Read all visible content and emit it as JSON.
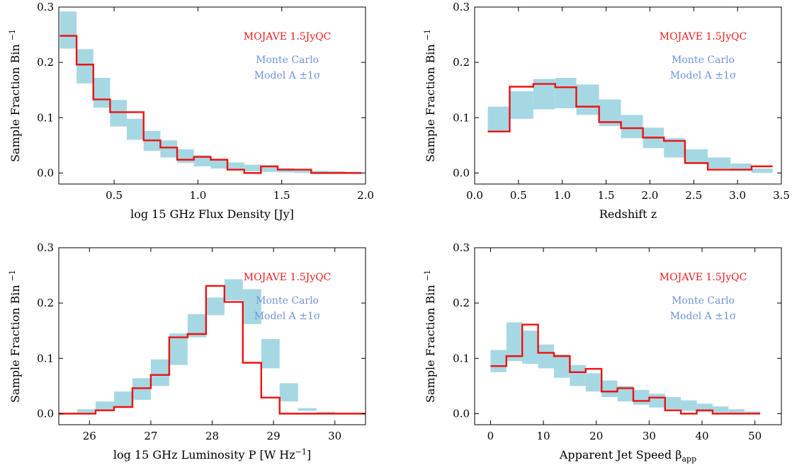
{
  "colors": {
    "observed": "#ee1111",
    "band": "#a6d8e3",
    "legend_blue": "#6d95d8"
  },
  "chart_data": [
    {
      "type": "area",
      "xlabel": "log 15 GHz Flux Density [Jy]",
      "ylabel": "Sample Fraction Bin",
      "ylabel_sup": "−1",
      "xlim": [
        0.17,
        2.0
      ],
      "ylim": [
        -0.02,
        0.3
      ],
      "xticks": [
        0.5,
        1.0,
        1.5,
        2.0
      ],
      "xtick_labels": [
        "0.5",
        "1.0",
        "1.5",
        "2.0"
      ],
      "yticks": [
        0.0,
        0.1,
        0.2,
        0.3
      ],
      "ytick_labels": [
        "0.0",
        "0.1",
        "0.2",
        "0.3"
      ],
      "bin_edges": [
        0.176,
        0.276,
        0.376,
        0.476,
        0.576,
        0.676,
        0.776,
        0.876,
        0.976,
        1.076,
        1.176,
        1.276,
        1.376,
        1.476,
        1.576,
        1.676,
        1.776,
        1.876,
        1.976
      ],
      "model_lower": [
        0.225,
        0.162,
        0.118,
        0.084,
        0.06,
        0.04,
        0.028,
        0.018,
        0.012,
        0.008,
        0.005,
        0.003,
        0.002,
        0.001,
        0.0,
        0.0,
        0.0,
        0.0
      ],
      "model_upper": [
        0.292,
        0.224,
        0.172,
        0.132,
        0.098,
        0.076,
        0.059,
        0.043,
        0.032,
        0.025,
        0.019,
        0.015,
        0.012,
        0.009,
        0.006,
        0.004,
        0.003,
        0.002
      ],
      "observed": [
        0.248,
        0.196,
        0.133,
        0.11,
        0.11,
        0.059,
        0.046,
        0.024,
        0.029,
        0.024,
        0.006,
        0.0,
        0.012,
        0.006,
        0.006,
        0.0,
        0.0,
        0.0
      ],
      "legend": {
        "observed": "MOJAVE 1.5JyQC",
        "model_line1": "Monte Carlo",
        "model_line2": "Model A ±1σ"
      }
    },
    {
      "type": "area",
      "xlabel": "Redshift z",
      "ylabel": "Sample Fraction Bin",
      "ylabel_sup": "−1",
      "xlim": [
        0.0,
        3.5
      ],
      "ylim": [
        -0.02,
        0.3
      ],
      "xticks": [
        0.0,
        0.5,
        1.0,
        1.5,
        2.0,
        2.5,
        3.0,
        3.5
      ],
      "xtick_labels": [
        "0.0",
        "0.5",
        "1.0",
        "1.5",
        "2.0",
        "2.5",
        "3.0",
        "3.5"
      ],
      "yticks": [
        0.0,
        0.1,
        0.2,
        0.3
      ],
      "ytick_labels": [
        "0.0",
        "0.1",
        "0.2",
        "0.3"
      ],
      "bin_edges": [
        0.15,
        0.4,
        0.67,
        0.92,
        1.16,
        1.42,
        1.67,
        1.92,
        2.16,
        2.4,
        2.66,
        2.92,
        3.16,
        3.4
      ],
      "model_lower": [
        0.075,
        0.098,
        0.115,
        0.117,
        0.105,
        0.085,
        0.063,
        0.045,
        0.028,
        0.016,
        0.008,
        0.004,
        0.0
      ],
      "model_upper": [
        0.12,
        0.148,
        0.17,
        0.172,
        0.16,
        0.133,
        0.105,
        0.082,
        0.063,
        0.043,
        0.028,
        0.017,
        0.008
      ],
      "observed": [
        0.075,
        0.156,
        0.161,
        0.155,
        0.12,
        0.092,
        0.081,
        0.064,
        0.058,
        0.018,
        0.006,
        0.006,
        0.012
      ],
      "legend": {
        "observed": "MOJAVE 1.5JyQC",
        "model_line1": "Monte Carlo",
        "model_line2": "Model A ±1σ"
      }
    },
    {
      "type": "area",
      "xlabel": "log 15 GHz Luminosity P [W Hz",
      "xlabel_sup": "−1",
      "xlabel_end": "]",
      "ylabel": "Sample Fraction Bin",
      "ylabel_sup": "−1",
      "xlim": [
        25.5,
        30.5
      ],
      "ylim": [
        -0.02,
        0.3
      ],
      "xticks": [
        26,
        27,
        28,
        29,
        30
      ],
      "xtick_labels": [
        "26",
        "27",
        "28",
        "29",
        "30"
      ],
      "yticks": [
        0.0,
        0.1,
        0.2,
        0.3
      ],
      "ytick_labels": [
        "0.0",
        "0.1",
        "0.2",
        "0.3"
      ],
      "bin_edges": [
        25.5,
        25.8,
        26.1,
        26.4,
        26.7,
        27.0,
        27.3,
        27.6,
        27.9,
        28.2,
        28.5,
        28.8,
        29.1,
        29.4,
        29.7,
        30.0,
        30.3,
        30.5
      ],
      "model_lower": [
        0.0,
        0.002,
        0.006,
        0.012,
        0.025,
        0.05,
        0.088,
        0.138,
        0.178,
        0.205,
        0.162,
        0.082,
        0.022,
        0.005,
        0.001,
        0.0,
        0.0
      ],
      "model_upper": [
        0.0,
        0.008,
        0.022,
        0.04,
        0.064,
        0.098,
        0.145,
        0.18,
        0.21,
        0.243,
        0.225,
        0.135,
        0.055,
        0.01,
        0.003,
        0.0,
        0.0
      ],
      "observed": [
        0.0,
        0.0,
        0.006,
        0.012,
        0.046,
        0.07,
        0.138,
        0.144,
        0.231,
        0.202,
        0.092,
        0.029,
        0.0,
        0.0,
        0.0,
        0.0,
        0.0
      ],
      "legend": {
        "observed": "MOJAVE 1.5JyQC",
        "model_line1": "Monte Carlo",
        "model_line2": "Model A ±1σ"
      }
    },
    {
      "type": "area",
      "xlabel": "Apparent Jet Speed β",
      "xlabel_sub": "app",
      "ylabel": "Sample Fraction Bin",
      "ylabel_sup": "−1",
      "xlim": [
        -3,
        55
      ],
      "ylim": [
        -0.02,
        0.3
      ],
      "xticks": [
        0,
        10,
        20,
        30,
        40,
        50
      ],
      "xtick_labels": [
        "0",
        "10",
        "20",
        "30",
        "40",
        "50"
      ],
      "yticks": [
        0.0,
        0.1,
        0.2,
        0.3
      ],
      "ytick_labels": [
        "0.0",
        "0.1",
        "0.2",
        "0.3"
      ],
      "bin_edges": [
        0,
        3,
        6,
        9,
        12,
        15,
        18,
        21,
        24,
        27,
        30,
        33,
        36,
        39,
        42,
        45,
        48,
        51
      ],
      "model_lower": [
        0.075,
        0.095,
        0.09,
        0.082,
        0.065,
        0.05,
        0.04,
        0.03,
        0.022,
        0.016,
        0.011,
        0.008,
        0.005,
        0.003,
        0.002,
        0.001,
        0.0
      ],
      "model_upper": [
        0.115,
        0.165,
        0.15,
        0.125,
        0.107,
        0.088,
        0.073,
        0.06,
        0.05,
        0.043,
        0.036,
        0.03,
        0.024,
        0.018,
        0.013,
        0.008,
        0.004
      ],
      "observed": [
        0.086,
        0.104,
        0.161,
        0.11,
        0.104,
        0.075,
        0.081,
        0.04,
        0.046,
        0.023,
        0.029,
        0.006,
        0.0,
        0.006,
        0.0,
        0.0,
        0.0
      ],
      "legend": {
        "observed": "MOJAVE 1.5JyQC",
        "model_line1": "Monte Carlo",
        "model_line2": "Model A ±1σ"
      }
    }
  ]
}
